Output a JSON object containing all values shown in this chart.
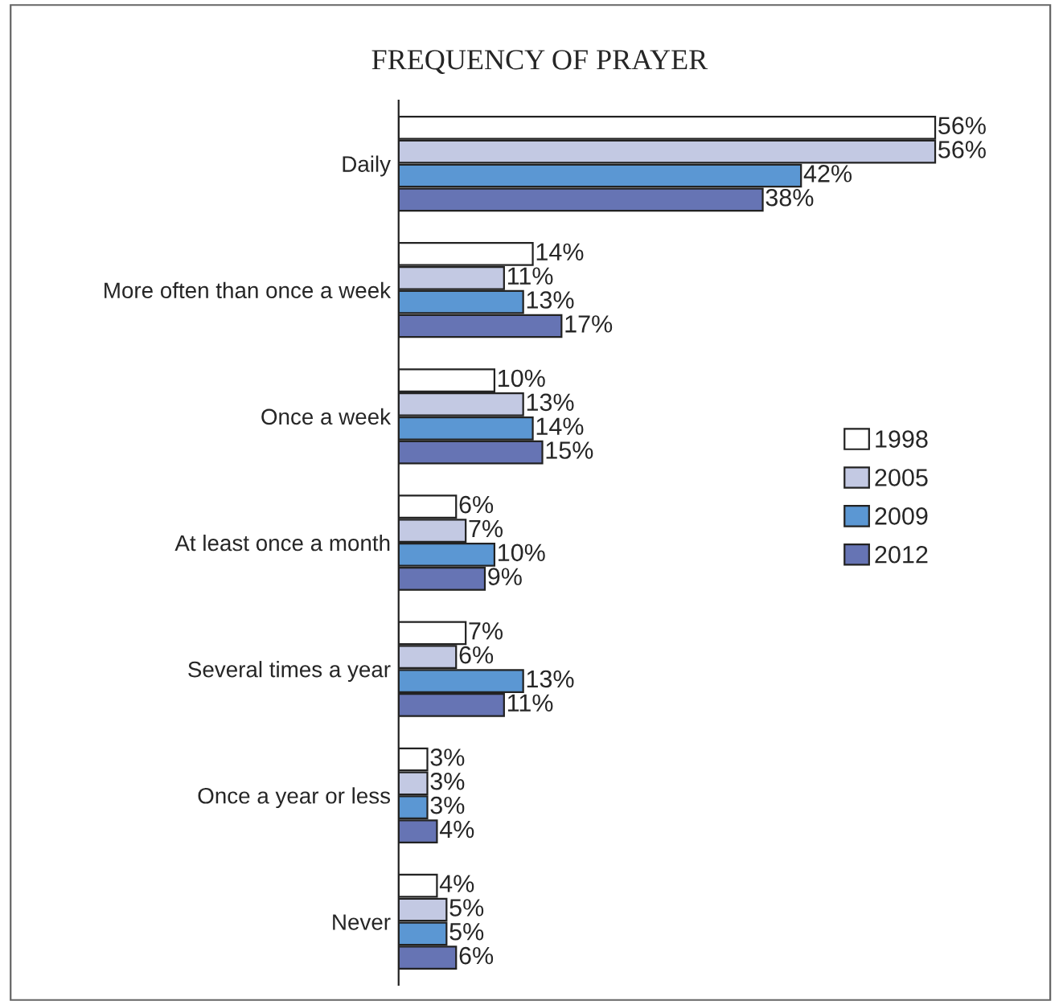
{
  "chart_data": {
    "type": "bar",
    "orientation": "horizontal",
    "title": "FREQUENCY OF PRAYER",
    "categories": [
      "Daily",
      "More often than once a week",
      "Once a week",
      "At least once a month",
      "Several times a year",
      "Once a year or less",
      "Never"
    ],
    "series": [
      {
        "name": "1998",
        "color": "#ffffff",
        "values": [
          56,
          14,
          10,
          6,
          7,
          3,
          4
        ],
        "value_labels": [
          "56%",
          "14%",
          "10%",
          "6%",
          "7%",
          "3%",
          "4%"
        ]
      },
      {
        "name": "2005",
        "color": "#c3c9e3",
        "values": [
          56,
          11,
          13,
          7,
          6,
          3,
          5
        ],
        "value_labels": [
          "56%",
          "11%",
          "13%",
          "7%",
          "6%",
          "3%",
          "5%"
        ]
      },
      {
        "name": "2009",
        "color": "#5b97d3",
        "values": [
          42,
          13,
          14,
          10,
          13,
          3,
          5
        ],
        "value_labels": [
          "42%",
          "13%",
          "14%",
          "10%",
          "13%",
          "3%",
          "5%"
        ]
      },
      {
        "name": "2012",
        "color": "#6674b4",
        "values": [
          38,
          17,
          15,
          9,
          11,
          4,
          6
        ],
        "value_labels": [
          "38%",
          "17%",
          "15%",
          "9%",
          "11%",
          "4%",
          "6%"
        ]
      }
    ],
    "legend": "center right",
    "grid": false
  }
}
